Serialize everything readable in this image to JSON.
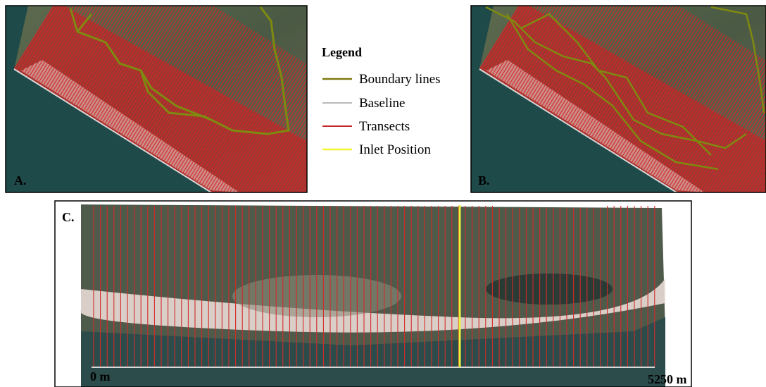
{
  "legend": {
    "title": "Legend",
    "items": [
      {
        "label": "Boundary lines"
      },
      {
        "label": "Baseline"
      },
      {
        "label": "Transects"
      },
      {
        "label": "Inlet Position"
      }
    ]
  },
  "panels": [
    {
      "label": "A."
    },
    {
      "label": "B."
    },
    {
      "label": "C."
    }
  ],
  "scale": {
    "start": "0 m",
    "end": "5250 m"
  }
}
